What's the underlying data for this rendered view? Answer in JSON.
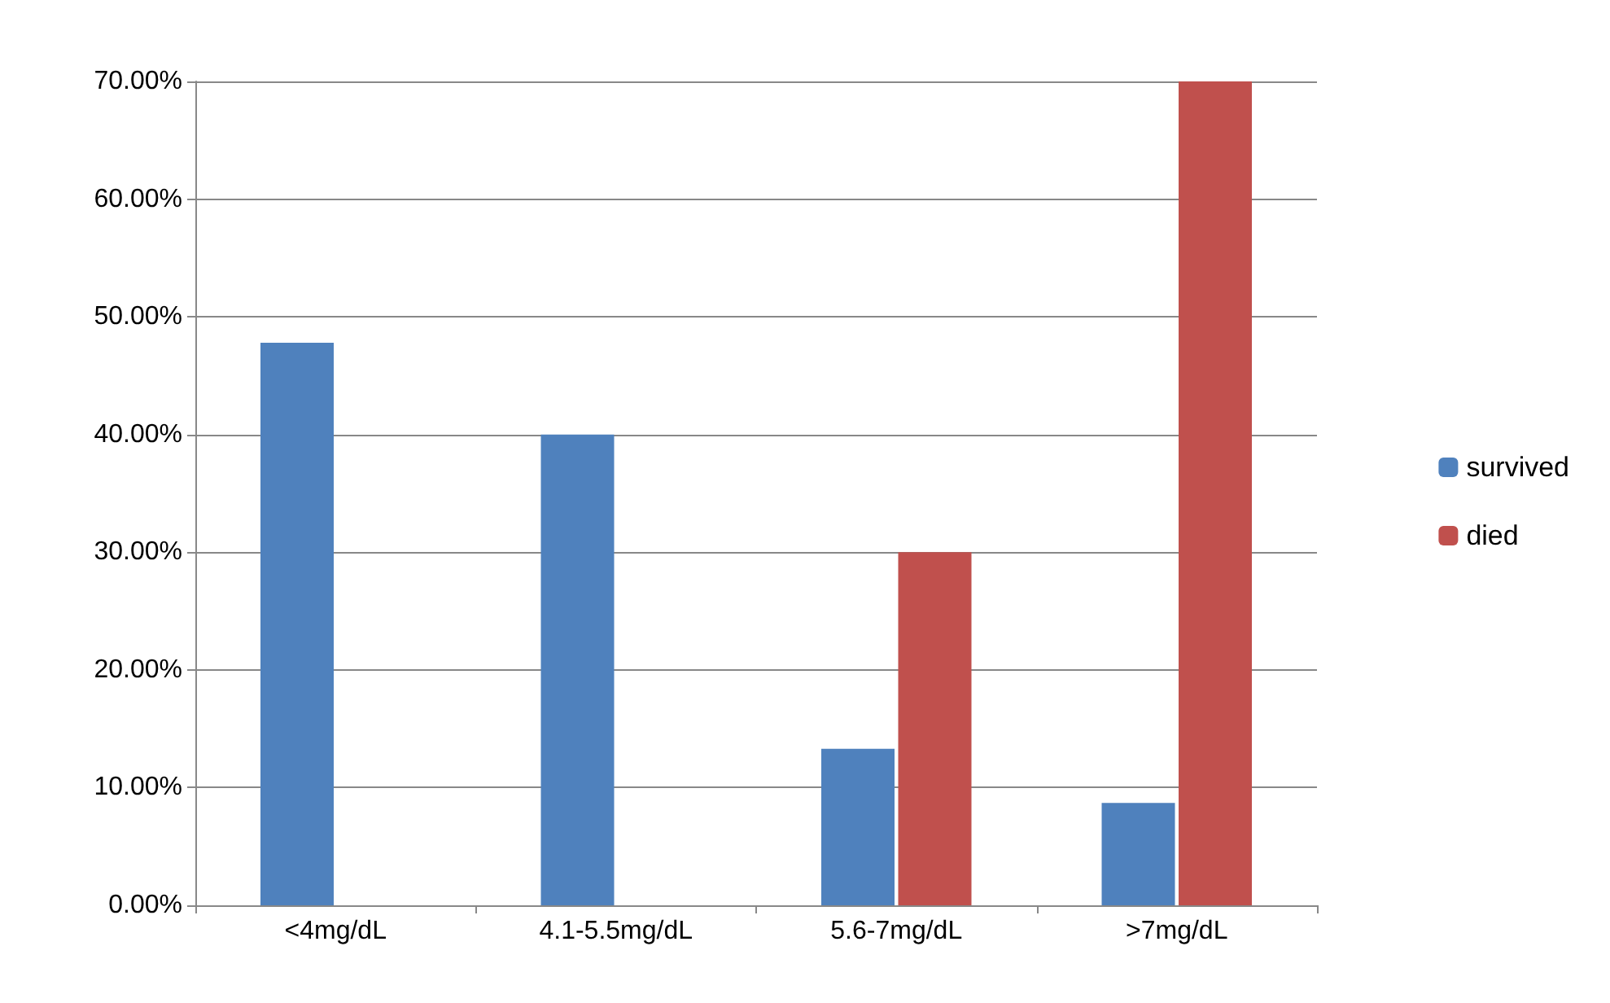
{
  "chart_data": {
    "type": "bar",
    "categories": [
      "<4mg/dL",
      "4.1-5.5mg/dL",
      "5.6-7mg/dL",
      ">7mg/dL"
    ],
    "series": [
      {
        "name": "survived",
        "color": "#4f81bd",
        "values": [
          47.8,
          40,
          13.3,
          8.7
        ]
      },
      {
        "name": "died",
        "color": "#c0504d",
        "values": [
          0,
          0,
          30,
          70
        ]
      }
    ],
    "ylim": [
      0,
      70
    ],
    "yticks": [
      {
        "value": 0,
        "label": "0.00%"
      },
      {
        "value": 10,
        "label": "10.00%"
      },
      {
        "value": 20,
        "label": "20.00%"
      },
      {
        "value": 30,
        "label": "30.00%"
      },
      {
        "value": 40,
        "label": "40.00%"
      },
      {
        "value": 50,
        "label": "50.00%"
      },
      {
        "value": 60,
        "label": "60.00%"
      },
      {
        "value": 70,
        "label": "70.00%"
      }
    ],
    "grid": true,
    "legend": "right"
  }
}
